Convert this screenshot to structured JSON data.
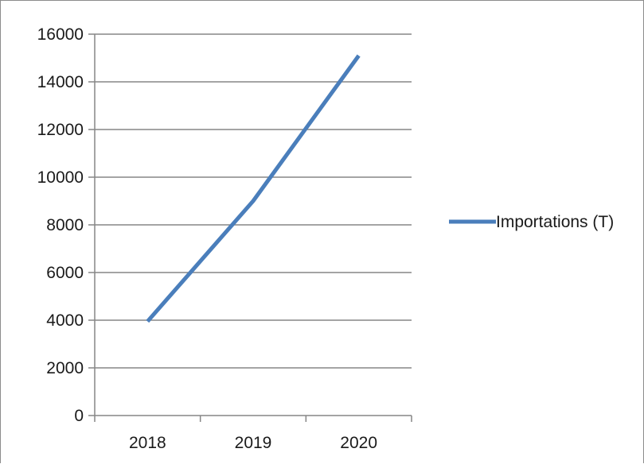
{
  "chart_data": {
    "type": "line",
    "title": "",
    "xlabel": "",
    "ylabel": "",
    "categories": [
      "2018",
      "2019",
      "2020"
    ],
    "series": [
      {
        "name": "Importations (T)",
        "values": [
          3950,
          9000,
          15100
        ],
        "color": "#4a7ebb"
      }
    ],
    "ylim": [
      0,
      16000
    ],
    "yticks": [
      0,
      2000,
      4000,
      6000,
      8000,
      10000,
      12000,
      14000,
      16000
    ],
    "grid": true,
    "legend": "right"
  }
}
